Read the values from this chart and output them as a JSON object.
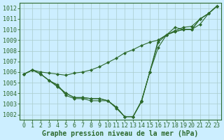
{
  "xlabel": "Graphe pression niveau de la mer (hPa)",
  "ylabel": "",
  "bg_color": "#cceeff",
  "grid_color": "#aacccc",
  "line_color": "#2d6a2d",
  "marker_color": "#2d6a2d",
  "xlim": [
    -0.5,
    23.5
  ],
  "ylim": [
    1001.5,
    1012.5
  ],
  "yticks": [
    1002,
    1003,
    1004,
    1005,
    1006,
    1007,
    1008,
    1009,
    1010,
    1011,
    1012
  ],
  "xticks": [
    0,
    1,
    2,
    3,
    4,
    5,
    6,
    7,
    8,
    9,
    10,
    11,
    12,
    13,
    14,
    15,
    16,
    17,
    18,
    19,
    20,
    21,
    22,
    23
  ],
  "series": [
    [
      1005.8,
      1006.2,
      1005.8,
      1005.2,
      1004.8,
      1003.8,
      1003.5,
      1003.5,
      1003.3,
      1003.3,
      1003.3,
      1002.6,
      1001.8,
      1001.8,
      1003.3,
      1006.0,
      1008.3,
      1009.5,
      1009.8,
      1010.0,
      1010.0,
      1010.5,
      1011.5,
      1012.2
    ],
    [
      1005.8,
      1006.2,
      1005.8,
      1005.2,
      1004.6,
      1004.0,
      1003.6,
      1003.6,
      1003.5,
      1003.5,
      1003.3,
      1002.7,
      1001.8,
      1001.8,
      1003.2,
      1006.0,
      1008.8,
      1009.5,
      1009.8,
      1010.0,
      1010.0,
      1011.0,
      1011.5,
      1012.2
    ],
    [
      1005.8,
      1006.2,
      1005.8,
      1005.2,
      1004.7,
      1004.0,
      1003.6,
      1003.6,
      1003.5,
      1003.5,
      1003.3,
      1002.7,
      1001.8,
      1001.8,
      1003.2,
      1006.0,
      1009.0,
      1009.5,
      1010.2,
      1010.0,
      1010.0,
      1011.0,
      1011.5,
      1012.2
    ],
    [
      1005.8,
      1006.2,
      1006.0,
      1005.9,
      1005.8,
      1005.7,
      1005.9,
      1006.0,
      1006.2,
      1006.5,
      1006.9,
      1007.3,
      1007.8,
      1008.1,
      1008.5,
      1008.8,
      1009.0,
      1009.5,
      1009.9,
      1010.2,
      1010.3,
      1011.0,
      1011.5,
      1012.2
    ]
  ],
  "text_color": "#2d6a2d",
  "axis_label_fontsize": 7,
  "tick_fontsize": 6,
  "xlabel_bold": true
}
